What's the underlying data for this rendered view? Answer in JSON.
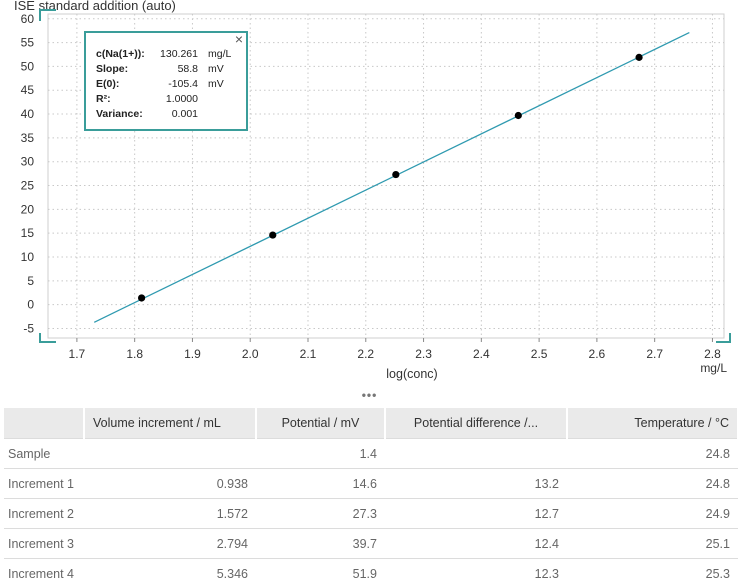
{
  "chart_data": {
    "type": "scatter",
    "title": "ISE standard addition (auto)",
    "xlabel": "log(conc)",
    "x_unit": "mg/L",
    "xlim": [
      1.65,
      2.82
    ],
    "ylim": [
      -7,
      61
    ],
    "x_ticks": [
      "1.7",
      "1.8",
      "1.9",
      "2.0",
      "2.1",
      "2.2",
      "2.3",
      "2.4",
      "2.5",
      "2.6",
      "2.7",
      "2.8"
    ],
    "y_ticks": [
      "-5",
      "0",
      "5",
      "10",
      "15",
      "20",
      "25",
      "30",
      "35",
      "40",
      "45",
      "50",
      "55",
      "60"
    ],
    "grid": true,
    "series": [
      {
        "kind": "points",
        "x": [
          1.812,
          2.039,
          2.252,
          2.464,
          2.673
        ],
        "y": [
          1.4,
          14.6,
          27.3,
          39.7,
          51.9
        ]
      },
      {
        "kind": "fit-line",
        "x": [
          1.73,
          2.76
        ],
        "y": [
          -3.7,
          57.1
        ]
      }
    ],
    "colors": {
      "line": "#2f9ab0",
      "points": "#000000",
      "accent": "#3a9d9a"
    }
  },
  "info": {
    "rows": [
      {
        "label": "c(Na(1+)):",
        "value": "130.261",
        "unit": "mg/L"
      },
      {
        "label": "Slope:",
        "value": "58.8",
        "unit": "mV"
      },
      {
        "label": "E(0):",
        "value": "-105.4",
        "unit": "mV"
      },
      {
        "label": "R²:",
        "value": "1.0000",
        "unit": ""
      },
      {
        "label": "Variance:",
        "value": "0.001",
        "unit": ""
      }
    ],
    "close_icon": "×"
  },
  "splitter": "•••",
  "table": {
    "headers": [
      "",
      "Volume increment / mL",
      "Potential / mV",
      "Potential difference /...",
      "Temperature / °C"
    ],
    "rows": [
      [
        "Sample",
        "",
        "1.4",
        "",
        "24.8"
      ],
      [
        "Increment 1",
        "0.938",
        "14.6",
        "13.2",
        "24.8"
      ],
      [
        "Increment 2",
        "1.572",
        "27.3",
        "12.7",
        "24.9"
      ],
      [
        "Increment 3",
        "2.794",
        "39.7",
        "12.4",
        "25.1"
      ],
      [
        "Increment 4",
        "5.346",
        "51.9",
        "12.3",
        "25.3"
      ]
    ]
  }
}
